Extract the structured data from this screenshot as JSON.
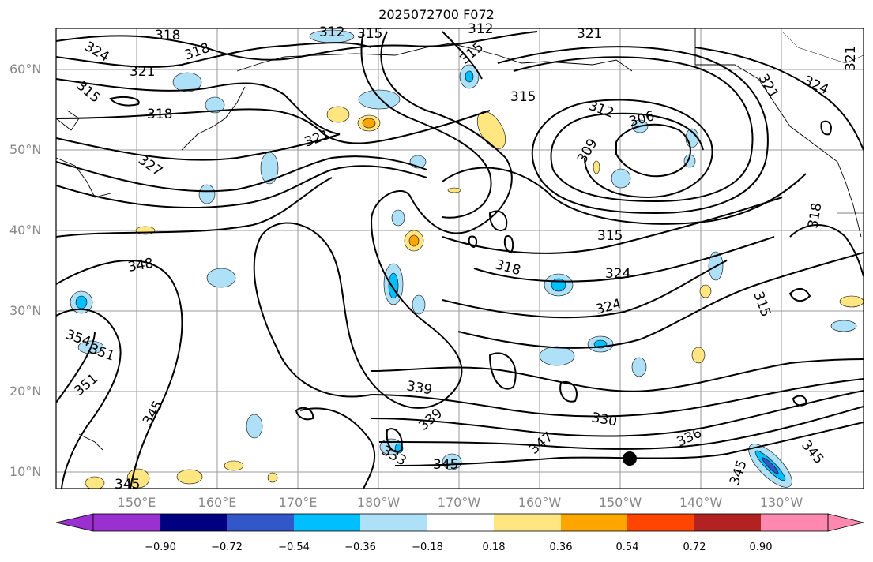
{
  "title": "2025072700 F072",
  "lat_labels": [
    "60°N",
    "50°N",
    "40°N",
    "30°N",
    "20°N",
    "10°N"
  ],
  "lon_labels": [
    "150°E",
    "160°E",
    "170°E",
    "180°W",
    "170°W",
    "160°W",
    "150°W",
    "140°W",
    "130°W"
  ],
  "contour_labels": [
    "318",
    "324",
    "321",
    "318",
    "315",
    "315",
    "312",
    "312",
    "315",
    "321",
    "318",
    "327",
    "315",
    "321",
    "321",
    "324",
    "312",
    "309",
    "306",
    "315",
    "318",
    "324",
    "324",
    "318",
    "348",
    "315",
    "354",
    "351",
    "351",
    "345",
    "339",
    "339",
    "345",
    "333",
    "347",
    "330",
    "336",
    "345",
    "345",
    "345"
  ],
  "colorbar": {
    "ticks": [
      "−0.90",
      "−0.72",
      "−0.54",
      "−0.36",
      "−0.18",
      "0.18",
      "0.36",
      "0.54",
      "0.72",
      "0.90"
    ],
    "colors": [
      "#9a30d0",
      "#000080",
      "#3157c8",
      "#00bfff",
      "#aee0f8",
      "#ffffff",
      "#ffe680",
      "#ffa500",
      "#ff4500",
      "#b22222",
      "#ff88b0"
    ]
  }
}
